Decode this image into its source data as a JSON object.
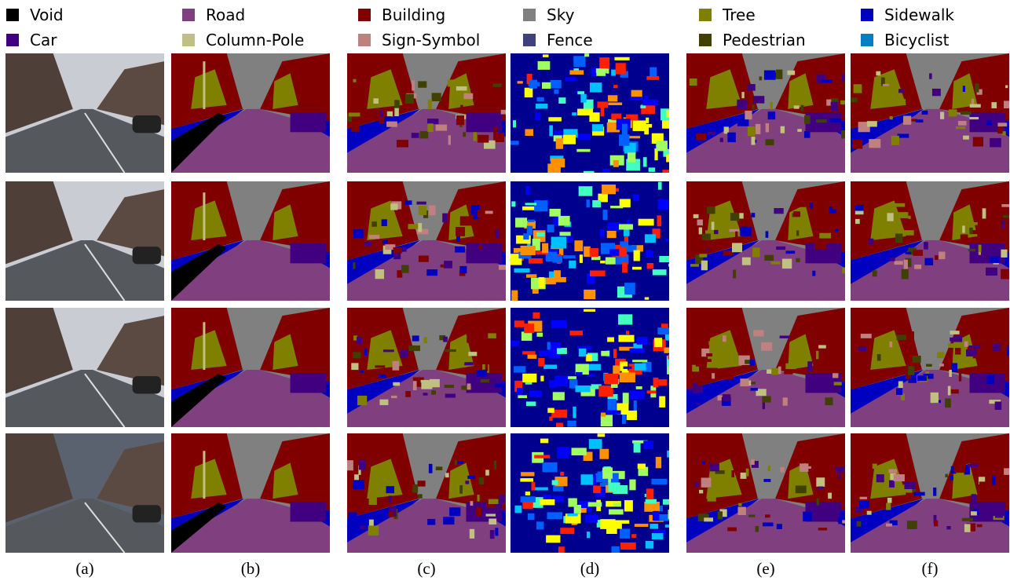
{
  "legend": [
    {
      "label": "Void",
      "color": "#000000"
    },
    {
      "label": "Road",
      "color": "#804080"
    },
    {
      "label": "Building",
      "color": "#800000"
    },
    {
      "label": "Sky",
      "color": "#808080"
    },
    {
      "label": "Tree",
      "color": "#808000"
    },
    {
      "label": "Sidewalk",
      "color": "#0000c0"
    },
    {
      "label": "Car",
      "color": "#400080"
    },
    {
      "label": "Column-Pole",
      "color": "#c0c080"
    },
    {
      "label": "Sign-Symbol",
      "color": "#c08080"
    },
    {
      "label": "Fence",
      "color": "#404080"
    },
    {
      "label": "Pedestrian",
      "color": "#404000"
    },
    {
      "label": "Bicyclist",
      "color": "#0080c0"
    }
  ],
  "captions": [
    "(a)",
    "(b)",
    "(c)",
    "(d)",
    "(e)",
    "(f)"
  ]
}
